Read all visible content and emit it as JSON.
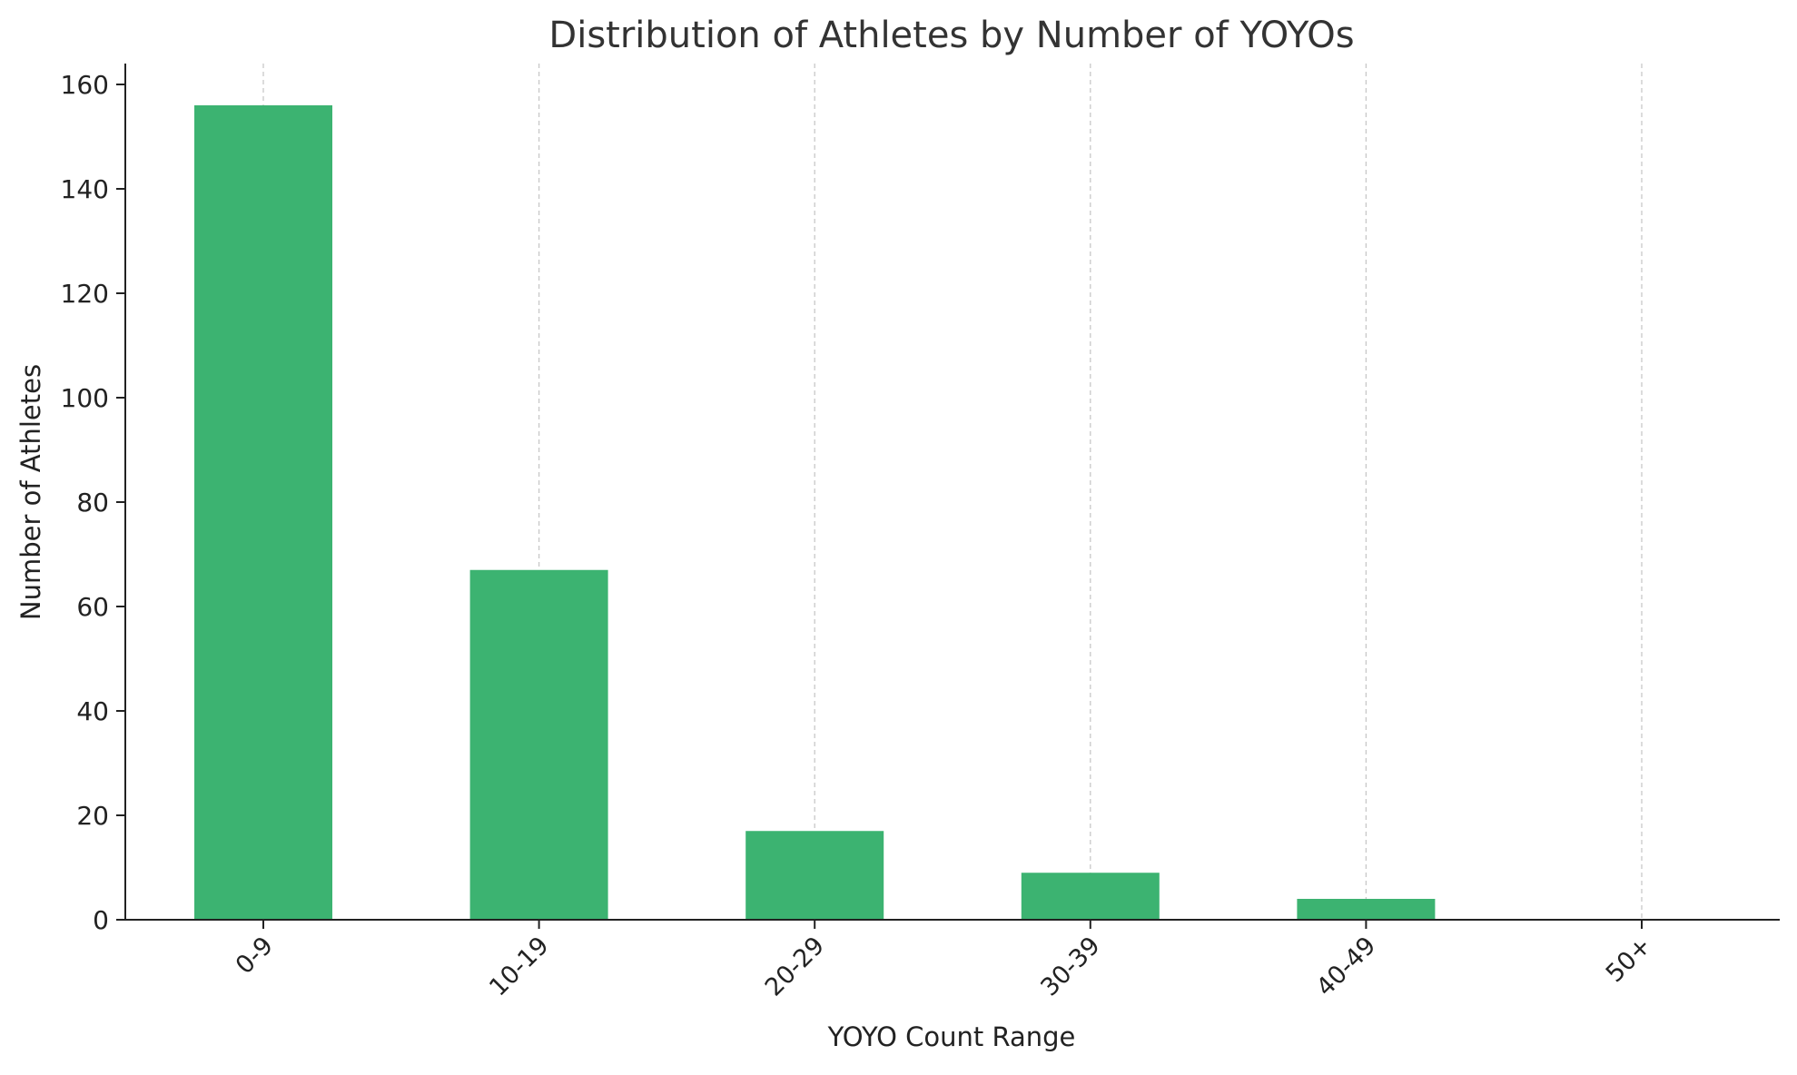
{
  "chart_data": {
    "type": "bar",
    "title": "Distribution of Athletes by Number of YOYOs",
    "xlabel": "YOYO Count Range",
    "ylabel": "Number of Athletes",
    "categories": [
      "0-9",
      "10-19",
      "20-29",
      "30-39",
      "40-49",
      "50+"
    ],
    "values": [
      156,
      67,
      17,
      9,
      4,
      0
    ],
    "ylim": [
      0,
      164
    ],
    "yticks": [
      0,
      20,
      40,
      60,
      80,
      100,
      120,
      140,
      160
    ],
    "grid": "vertical dashed",
    "legend": "none",
    "bar_color": "#3cb371",
    "grid_color": "#c8c8c8",
    "text_color": "#333333"
  }
}
